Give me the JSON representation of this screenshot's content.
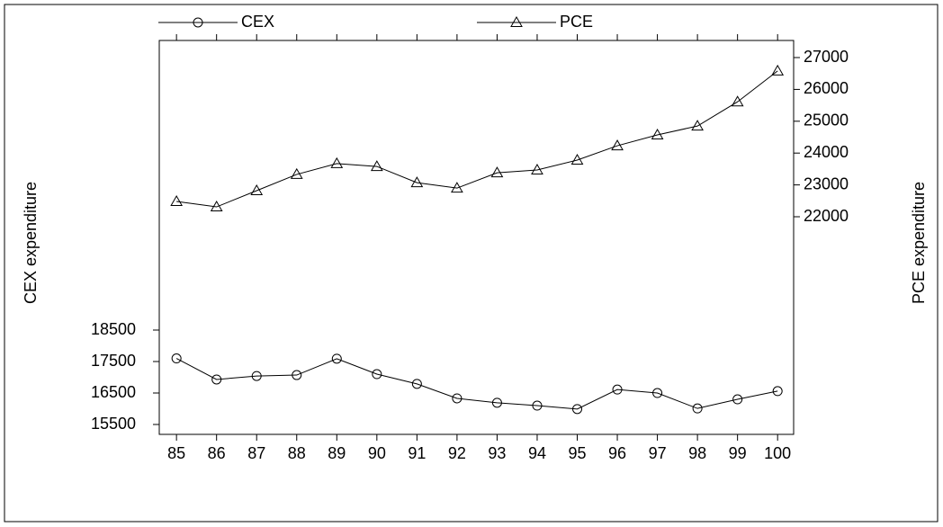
{
  "chart_data": {
    "type": "line",
    "x": [
      85,
      86,
      87,
      88,
      89,
      90,
      91,
      92,
      93,
      94,
      95,
      96,
      97,
      98,
      99,
      100
    ],
    "xlim": [
      84.57,
      100.4
    ],
    "xticks": [
      85,
      86,
      87,
      88,
      89,
      90,
      91,
      92,
      93,
      94,
      95,
      96,
      97,
      98,
      99,
      100
    ],
    "ylabel": "CEX expenditure",
    "y2label": "PCE expenditure",
    "ylim": [
      15186,
      27700
    ],
    "yticks": [
      15500,
      16500,
      17500,
      18500
    ],
    "y2lim": [
      15164,
      27537
    ],
    "y2ticks": [
      22000,
      23000,
      24000,
      25000,
      26000,
      27000
    ],
    "series": [
      {
        "name": "CEX",
        "color": "#000000",
        "marker": "circle",
        "values": [
          17600,
          16930,
          17040,
          17070,
          17590,
          17100,
          16790,
          16330,
          16190,
          16100,
          15990,
          16610,
          16500,
          16010,
          16300,
          16560
        ]
      },
      {
        "name": "PCE",
        "color": "#000000",
        "marker": "triangle",
        "axis": "y2",
        "values": [
          22480,
          22310,
          22820,
          23330,
          23670,
          23580,
          23070,
          22900,
          23380,
          23470,
          23780,
          24230,
          24570,
          24850,
          25610,
          26580
        ]
      }
    ]
  }
}
